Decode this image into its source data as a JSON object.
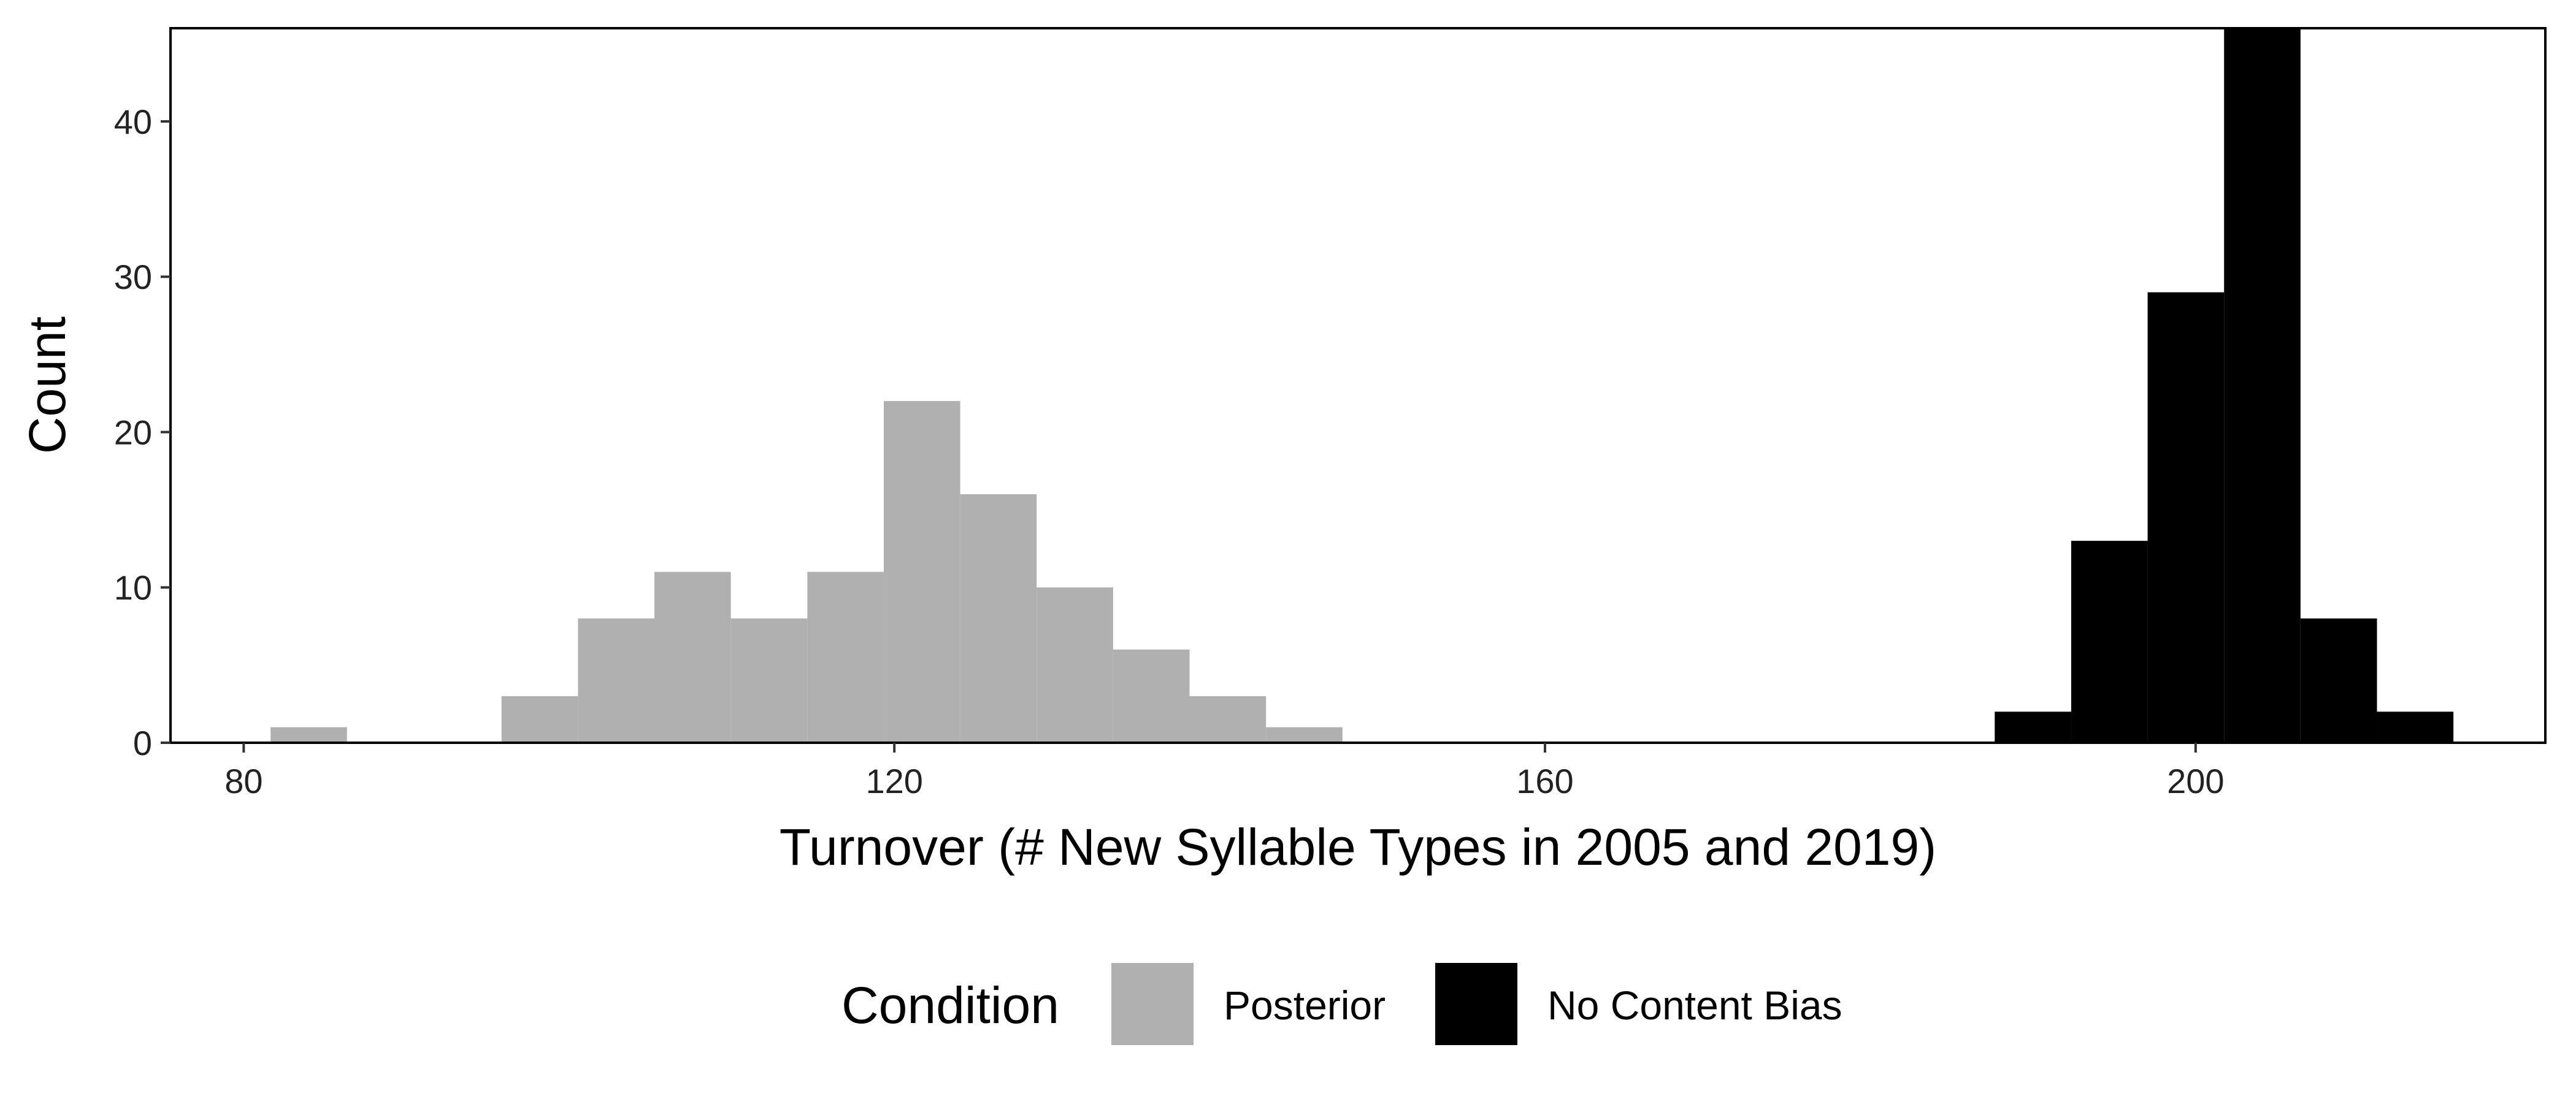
{
  "chart_data": {
    "type": "bar",
    "title": "",
    "xlabel": "Turnover (# New Syllable Types in 2005 and 2019)",
    "ylabel": "Count",
    "xlim": [
      75.5,
      221.5
    ],
    "ylim": [
      0,
      46
    ],
    "x_ticks": [
      80,
      120,
      160,
      200
    ],
    "y_ticks": [
      0,
      10,
      20,
      30,
      40
    ],
    "grid": false,
    "bin_width": 4.7,
    "legend": {
      "title": "Condition",
      "position": "bottom",
      "entries": [
        {
          "label": "Posterior",
          "color": "#b0b0b0"
        },
        {
          "label": "No Content Bias",
          "color": "#000000"
        }
      ]
    },
    "series": [
      {
        "name": "Posterior",
        "color": "#b0b0b0",
        "x": [
          84.0,
          98.2,
          102.9,
          107.6,
          112.3,
          117.0,
          121.7,
          126.4,
          131.1,
          135.8,
          140.5,
          145.2
        ],
        "values": [
          1,
          3,
          8,
          11,
          8,
          11,
          22,
          16,
          10,
          6,
          3,
          1
        ]
      },
      {
        "name": "No Content Bias",
        "color": "#000000",
        "x": [
          190.0,
          194.7,
          199.4,
          204.1,
          208.8,
          213.5
        ],
        "values": [
          2,
          13,
          29,
          46,
          8,
          2
        ]
      }
    ]
  }
}
